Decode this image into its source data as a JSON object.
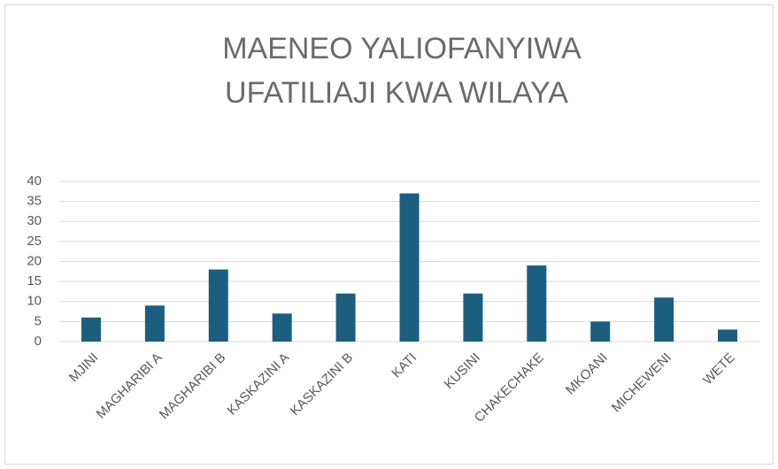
{
  "chart_data": {
    "type": "bar",
    "title": [
      "MAENEO YALIOFANYIWA",
      "UFATILIAJI KWA WILAYA"
    ],
    "categories": [
      "MJINI",
      "MAGHARIBI A",
      "MAGHARIBI B",
      "KASKAZINI A",
      "KASKAZINI B",
      "KATI",
      "KUSINI",
      "CHAKECHAKE",
      "MKOANI",
      "MICHEWENI",
      "WETE"
    ],
    "values": [
      6,
      9,
      18,
      7,
      12,
      37,
      12,
      19,
      5,
      11,
      3
    ],
    "color": "#1b5e80",
    "ylim": [
      0,
      40
    ],
    "yticks": [
      0,
      5,
      10,
      15,
      20,
      25,
      30,
      35,
      40
    ],
    "grid": true
  }
}
